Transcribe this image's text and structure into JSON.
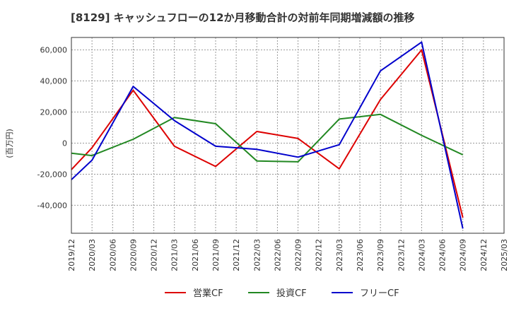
{
  "chart_data": {
    "type": "line",
    "title": "[8129]  キャッシュフローの12か月移動合計の対前年同期増減額の推移",
    "ylabel": "(百万円)",
    "xlabel": "",
    "ylim": [
      -58000,
      68000
    ],
    "yticks": [
      60000,
      40000,
      20000,
      0,
      -20000,
      -40000
    ],
    "ytick_labels": [
      "60,000",
      "40,000",
      "20,000",
      "0",
      "-20,000",
      "-40,000"
    ],
    "x_categories": [
      "2019/12",
      "2020/03",
      "2020/06",
      "2020/09",
      "2020/12",
      "2021/03",
      "2021/06",
      "2021/09",
      "2021/12",
      "2022/03",
      "2022/06",
      "2022/09",
      "2022/12",
      "2023/03",
      "2023/06",
      "2023/09",
      "2023/12",
      "2024/03",
      "2024/06",
      "2024/09",
      "2024/12",
      "2025/03"
    ],
    "grid": true,
    "legend_position": "bottom",
    "series": [
      {
        "name": "営業CF",
        "color": "#dd0000",
        "points": [
          [
            "2019/12",
            -17000
          ],
          [
            "2020/03",
            -3000
          ],
          [
            "2020/09",
            34000
          ],
          [
            "2021/03",
            -2000
          ],
          [
            "2021/09",
            -15000
          ],
          [
            "2022/03",
            7500
          ],
          [
            "2022/09",
            3000
          ],
          [
            "2023/03",
            -16500
          ],
          [
            "2023/09",
            28000
          ],
          [
            "2024/03",
            60000
          ],
          [
            "2024/09",
            -48000
          ]
        ]
      },
      {
        "name": "投資CF",
        "color": "#228822",
        "points": [
          [
            "2019/12",
            -6500
          ],
          [
            "2020/03",
            -8000
          ],
          [
            "2020/09",
            2500
          ],
          [
            "2021/03",
            16500
          ],
          [
            "2021/09",
            12500
          ],
          [
            "2022/03",
            -11500
          ],
          [
            "2022/09",
            -12000
          ],
          [
            "2023/03",
            15500
          ],
          [
            "2023/09",
            18500
          ],
          [
            "2024/03",
            5000
          ],
          [
            "2024/09",
            -7500
          ]
        ]
      },
      {
        "name": "フリーCF",
        "color": "#0000cc",
        "points": [
          [
            "2019/12",
            -23500
          ],
          [
            "2020/03",
            -11000
          ],
          [
            "2020/09",
            36500
          ],
          [
            "2021/03",
            14500
          ],
          [
            "2021/09",
            -2000
          ],
          [
            "2022/03",
            -4000
          ],
          [
            "2022/09",
            -9000
          ],
          [
            "2023/03",
            -1000
          ],
          [
            "2023/09",
            46500
          ],
          [
            "2024/03",
            65000
          ],
          [
            "2024/09",
            -55000
          ]
        ]
      }
    ]
  }
}
